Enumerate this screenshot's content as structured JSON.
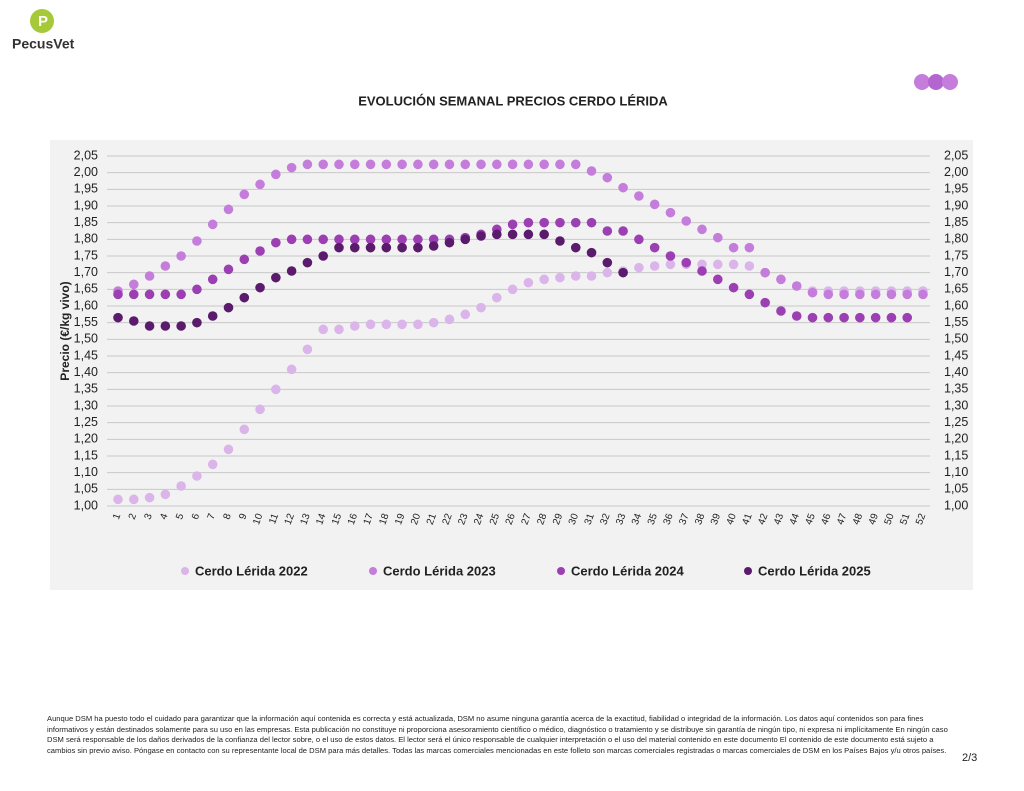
{
  "header": {
    "logo_text": "PecusVet"
  },
  "chart_data": {
    "type": "scatter",
    "title": "EVOLUCIÓN SEMANAL PRECIOS CERDO LÉRIDA",
    "y_label": "Precio (€/kg vivo)",
    "categories": [
      "1",
      "2",
      "3",
      "4",
      "5",
      "6",
      "7",
      "8",
      "9",
      "10",
      "11",
      "12",
      "13",
      "14",
      "15",
      "16",
      "17",
      "18",
      "19",
      "20",
      "21",
      "22",
      "23",
      "24",
      "25",
      "26",
      "27",
      "28",
      "29",
      "30",
      "31",
      "32",
      "33",
      "34",
      "35",
      "36",
      "37",
      "38",
      "39",
      "40",
      "41",
      "42",
      "43",
      "44",
      "45",
      "46",
      "47",
      "48",
      "49",
      "50",
      "51",
      "52"
    ],
    "series": [
      {
        "name": "Cerdo Lérida 2022",
        "color": "#dbb5ea",
        "values": [
          1.02,
          1.02,
          1.025,
          1.035,
          1.06,
          1.09,
          1.125,
          1.17,
          1.23,
          1.29,
          1.35,
          1.41,
          1.47,
          1.53,
          1.53,
          1.54,
          1.545,
          1.545,
          1.545,
          1.545,
          1.55,
          1.56,
          1.575,
          1.595,
          1.625,
          1.65,
          1.67,
          1.68,
          1.685,
          1.69,
          1.69,
          1.7,
          1.705,
          1.715,
          1.72,
          1.725,
          1.725,
          1.725,
          1.725,
          1.725,
          1.72,
          1.7,
          1.68,
          1.66,
          1.645,
          1.645,
          1.645,
          1.645,
          1.645,
          1.645,
          1.645,
          1.645
        ]
      },
      {
        "name": "Cerdo Lérida 2023",
        "color": "#c57ddc",
        "values": [
          1.645,
          1.665,
          1.69,
          1.72,
          1.75,
          1.795,
          1.845,
          1.89,
          1.935,
          1.965,
          1.995,
          2.015,
          2.025,
          2.025,
          2.025,
          2.025,
          2.025,
          2.025,
          2.025,
          2.025,
          2.025,
          2.025,
          2.025,
          2.025,
          2.025,
          2.025,
          2.025,
          2.025,
          2.025,
          2.025,
          2.005,
          1.985,
          1.955,
          1.93,
          1.905,
          1.88,
          1.855,
          1.83,
          1.805,
          1.775,
          1.775,
          1.7,
          1.68,
          1.66,
          1.64,
          1.635,
          1.635,
          1.635,
          1.635,
          1.635,
          1.635,
          1.635
        ]
      },
      {
        "name": "Cerdo Lérida 2024",
        "color": "#9b3fb2",
        "values": [
          1.635,
          1.635,
          1.635,
          1.635,
          1.635,
          1.65,
          1.68,
          1.71,
          1.74,
          1.765,
          1.79,
          1.8,
          1.8,
          1.8,
          1.8,
          1.8,
          1.8,
          1.8,
          1.8,
          1.8,
          1.8,
          1.8,
          1.805,
          1.815,
          1.83,
          1.845,
          1.85,
          1.85,
          1.85,
          1.85,
          1.85,
          1.825,
          1.825,
          1.8,
          1.775,
          1.75,
          1.73,
          1.705,
          1.68,
          1.655,
          1.635,
          1.61,
          1.585,
          1.57,
          1.565,
          1.565,
          1.565,
          1.565,
          1.565,
          1.565,
          1.565,
          null
        ]
      },
      {
        "name": "Cerdo Lérida 2025",
        "color": "#5b1b6d",
        "values": [
          1.565,
          1.555,
          1.54,
          1.54,
          1.54,
          1.55,
          1.57,
          1.595,
          1.625,
          1.655,
          1.685,
          1.705,
          1.73,
          1.75,
          1.775,
          1.775,
          1.775,
          1.775,
          1.775,
          1.775,
          1.78,
          1.79,
          1.8,
          1.81,
          1.815,
          1.815,
          1.815,
          1.815,
          1.795,
          1.775,
          1.76,
          1.73,
          1.7,
          null,
          null,
          null,
          null,
          null,
          null,
          null,
          null,
          null,
          null,
          null,
          null,
          null,
          null,
          null,
          null,
          null,
          null,
          null
        ]
      }
    ],
    "ylim": [
      1,
      2.05
    ],
    "yticks": [
      {
        "value": 1,
        "label": "1,00"
      },
      {
        "value": 1.05,
        "label": "1,05"
      },
      {
        "value": 1.1,
        "label": "1,10"
      },
      {
        "value": 1.15,
        "label": "1,15"
      },
      {
        "value": 1.2,
        "label": "1,20"
      },
      {
        "value": 1.25,
        "label": "1,25"
      },
      {
        "value": 1.3,
        "label": "1,30"
      },
      {
        "value": 1.35,
        "label": "1,35"
      },
      {
        "value": 1.4,
        "label": "1,40"
      },
      {
        "value": 1.45,
        "label": "1,45"
      },
      {
        "value": 1.5,
        "label": "1,50"
      },
      {
        "value": 1.55,
        "label": "1,55"
      },
      {
        "value": 1.6,
        "label": "1,60"
      },
      {
        "value": 1.65,
        "label": "1,65"
      },
      {
        "value": 1.7,
        "label": "1,70"
      },
      {
        "value": 1.75,
        "label": "1,75"
      },
      {
        "value": 1.8,
        "label": "1,80"
      },
      {
        "value": 1.85,
        "label": "1,85"
      },
      {
        "value": 1.9,
        "label": "1,90"
      },
      {
        "value": 1.95,
        "label": "1,95"
      },
      {
        "value": 2,
        "label": "2,00"
      },
      {
        "value": 2.05,
        "label": "2,05"
      }
    ],
    "y2lim": [
      1,
      2.05
    ],
    "y2ticks": [
      {
        "value": 1,
        "label": "1,00"
      },
      {
        "value": 1.05,
        "label": "1,05"
      },
      {
        "value": 1.1,
        "label": "1,10"
      },
      {
        "value": 1.15,
        "label": "1,15"
      },
      {
        "value": 1.2,
        "label": "1,20"
      },
      {
        "value": 1.25,
        "label": "1,25"
      },
      {
        "value": 1.3,
        "label": "1,30"
      },
      {
        "value": 1.35,
        "label": "1,35"
      },
      {
        "value": 1.4,
        "label": "1,40"
      },
      {
        "value": 1.45,
        "label": "1,45"
      },
      {
        "value": 1.5,
        "label": "1,50"
      },
      {
        "value": 1.55,
        "label": "1,55"
      },
      {
        "value": 1.6,
        "label": "1,60"
      },
      {
        "value": 1.65,
        "label": "1,65"
      },
      {
        "value": 1.7,
        "label": "1,70"
      },
      {
        "value": 1.75,
        "label": "1,75"
      },
      {
        "value": 1.8,
        "label": "1,80"
      },
      {
        "value": 1.85,
        "label": "1,85"
      },
      {
        "value": 1.9,
        "label": "1,90"
      },
      {
        "value": 1.95,
        "label": "1,95"
      },
      {
        "value": 2,
        "label": "2,00"
      },
      {
        "value": 2.05,
        "label": "2,05"
      }
    ],
    "grid": true,
    "legend": "bottom"
  },
  "footer": {
    "disclaimer": "Aunque DSM ha puesto todo el cuidado para garantizar que la información aquí contenida es correcta y está actualizada, DSM no asume ninguna garantía acerca de la exactitud, fiabilidad o integridad de la información. Los datos aquí contenidos son para fines informativos y están destinados solamente para su uso en las empresas. Esta publicación no constituye ni proporciona asesoramiento científico o médico, diagnóstico o tratamiento y se distribuye sin garantía de ningún tipo, ni expresa ni implícitamente En ningún caso DSM será responsable de los daños derivados de la confianza del lector sobre, o el uso de estos datos. El lector será el único responsable de cualquier interpretación o el uso del material contenido en este documento El contenido de este documento está sujeto a cambios sin previo aviso. Póngase en contacto con su representante local de DSM para más detalles. Todas las marcas comerciales mencionadas en este folleto son marcas comerciales registradas o marcas comerciales de DSM en los Países Bajos y/u otros países.",
    "page_number": "2/3"
  }
}
